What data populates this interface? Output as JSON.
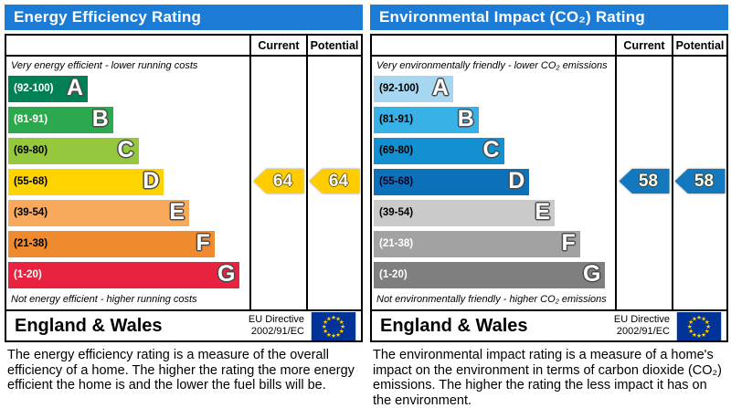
{
  "panels": [
    {
      "title": "Energy Efficiency Rating",
      "header": {
        "current": "Current",
        "potential": "Potential"
      },
      "top_note": "Very energy efficient - lower running costs",
      "bottom_note": "Not energy efficient - higher running costs",
      "bands": [
        {
          "range": "(92-100)",
          "letter": "A",
          "color": "#008054",
          "range_color": "#ffffff",
          "width_pct": 33
        },
        {
          "range": "(81-91)",
          "letter": "B",
          "color": "#2ca94f",
          "range_color": "#ffffff",
          "width_pct": 43.5
        },
        {
          "range": "(69-80)",
          "letter": "C",
          "color": "#95c83d",
          "range_color": "#000000",
          "width_pct": 54
        },
        {
          "range": "(55-68)",
          "letter": "D",
          "color": "#fed400",
          "range_color": "#000000",
          "width_pct": 64.5
        },
        {
          "range": "(39-54)",
          "letter": "E",
          "color": "#f9a95c",
          "range_color": "#000000",
          "width_pct": 75
        },
        {
          "range": "(21-38)",
          "letter": "F",
          "color": "#ef8a2e",
          "range_color": "#000000",
          "width_pct": 85.5
        },
        {
          "range": "(1-20)",
          "letter": "G",
          "color": "#e9223f",
          "range_color": "#ffffff",
          "width_pct": 96
        }
      ],
      "current": {
        "label": "Current",
        "value": "64",
        "band": "D",
        "color": "#ffcc00"
      },
      "potential": {
        "label": "Potential",
        "value": "64",
        "band": "D",
        "color": "#ffcc00"
      },
      "footer": {
        "region": "England & Wales",
        "directive": [
          "EU Directive",
          "2002/91/EC"
        ]
      },
      "flag_colors": {
        "field": "#003399",
        "stars": "#ffcc00"
      },
      "description": "The energy efficiency rating is a measure of the overall efficiency of a home. The higher the rating the more energy efficient the home is and the lower the fuel bills will be."
    },
    {
      "title": "Environmental Impact (CO₂) Rating",
      "header": {
        "current": "Current",
        "potential": "Potential"
      },
      "top_note": "Very environmentally friendly - lower CO₂ emissions",
      "bottom_note": "Not environmentally friendly - higher CO₂ emissions",
      "bands": [
        {
          "range": "(92-100)",
          "letter": "A",
          "color": "#a6d6f0",
          "range_color": "#000000",
          "width_pct": 33
        },
        {
          "range": "(81-91)",
          "letter": "B",
          "color": "#38b1e6",
          "range_color": "#000000",
          "width_pct": 43.5
        },
        {
          "range": "(69-80)",
          "letter": "C",
          "color": "#1290d2",
          "range_color": "#000000",
          "width_pct": 54
        },
        {
          "range": "(55-68)",
          "letter": "D",
          "color": "#0c71b8",
          "range_color": "#04042a",
          "width_pct": 64.5
        },
        {
          "range": "(39-54)",
          "letter": "E",
          "color": "#cacaca",
          "range_color": "#000000",
          "width_pct": 75
        },
        {
          "range": "(21-38)",
          "letter": "F",
          "color": "#a2a2a2",
          "range_color": "#ffffff",
          "width_pct": 85.5
        },
        {
          "range": "(1-20)",
          "letter": "G",
          "color": "#7f7f7f",
          "range_color": "#ffffff",
          "width_pct": 96
        }
      ],
      "current": {
        "label": "Current",
        "value": "58",
        "band": "D",
        "color": "#1478be"
      },
      "potential": {
        "label": "Potential",
        "value": "58",
        "band": "D",
        "color": "#1478be"
      },
      "footer": {
        "region": "England & Wales",
        "directive": [
          "EU Directive",
          "2002/91/EC"
        ]
      },
      "flag_colors": {
        "field": "#003399",
        "stars": "#ffcc00"
      },
      "description": "The environmental impact rating is a measure of a home's impact on the environment in terms of carbon dioxide (CO₂) emissions. The higher the rating the less impact it has on the environment."
    }
  ],
  "chart_data": [
    {
      "type": "bar",
      "title": "Energy Efficiency Rating",
      "categories": [
        "A (92-100)",
        "B (81-91)",
        "C (69-80)",
        "D (55-68)",
        "E (39-54)",
        "F (21-38)",
        "G (1-20)"
      ],
      "series": [
        {
          "name": "Current",
          "value": 64,
          "band": "D"
        },
        {
          "name": "Potential",
          "value": 64,
          "band": "D"
        }
      ],
      "value_range": [
        1,
        100
      ],
      "region": "England & Wales",
      "directive": "EU Directive 2002/91/EC"
    },
    {
      "type": "bar",
      "title": "Environmental Impact (CO₂) Rating",
      "categories": [
        "A (92-100)",
        "B (81-91)",
        "C (69-80)",
        "D (55-68)",
        "E (39-54)",
        "F (21-38)",
        "G (1-20)"
      ],
      "series": [
        {
          "name": "Current",
          "value": 58,
          "band": "D"
        },
        {
          "name": "Potential",
          "value": 58,
          "band": "D"
        }
      ],
      "value_range": [
        1,
        100
      ],
      "region": "England & Wales",
      "directive": "EU Directive 2002/91/EC"
    }
  ]
}
